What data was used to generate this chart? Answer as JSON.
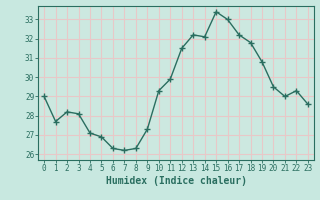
{
  "x": [
    0,
    1,
    2,
    3,
    4,
    5,
    6,
    7,
    8,
    9,
    10,
    11,
    12,
    13,
    14,
    15,
    16,
    17,
    18,
    19,
    20,
    21,
    22,
    23
  ],
  "y": [
    29.0,
    27.7,
    28.2,
    28.1,
    27.1,
    26.9,
    26.3,
    26.2,
    26.3,
    27.3,
    29.3,
    29.9,
    31.5,
    32.2,
    32.1,
    33.4,
    33.0,
    32.2,
    31.8,
    30.8,
    29.5,
    29.0,
    29.3,
    28.6
  ],
  "line_color": "#2a6e60",
  "marker": "+",
  "marker_size": 4,
  "bg_color": "#c8e8e0",
  "plot_bg_color": "#cce8e0",
  "grid_color": "#e8c8c8",
  "outer_bg": "#c8e8e0",
  "xlabel": "Humidex (Indice chaleur)",
  "ylabel": "",
  "title": "",
  "ylim": [
    25.7,
    33.7
  ],
  "xlim": [
    -0.5,
    23.5
  ],
  "yticks": [
    26,
    27,
    28,
    29,
    30,
    31,
    32,
    33
  ],
  "xticks": [
    0,
    1,
    2,
    3,
    4,
    5,
    6,
    7,
    8,
    9,
    10,
    11,
    12,
    13,
    14,
    15,
    16,
    17,
    18,
    19,
    20,
    21,
    22,
    23
  ],
  "tick_color": "#2a6e60",
  "tick_fontsize": 5.5,
  "xlabel_fontsize": 7.0,
  "spine_color": "#2a6e60",
  "linewidth": 1.0
}
